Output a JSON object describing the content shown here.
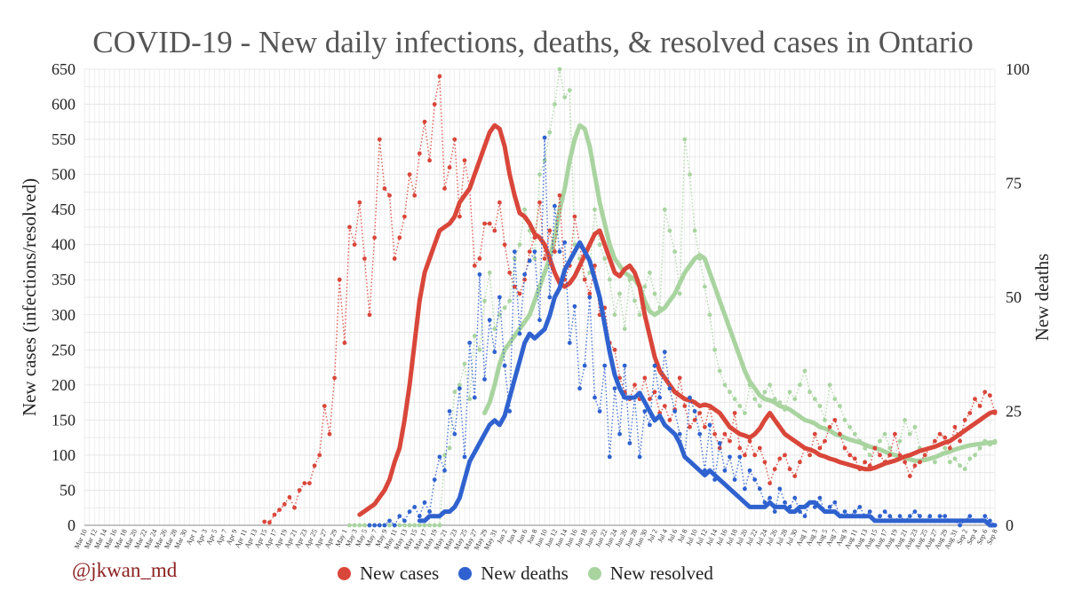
{
  "title": "COVID-19 - New daily infections, deaths, & resolved cases in Ontario",
  "credit": "@jkwan_md",
  "colors": {
    "cases": "#d9463a",
    "deaths": "#2f62cf",
    "resolved": "#a9d4a0",
    "grid": "#e3e3e3"
  },
  "chart_data": {
    "type": "line",
    "title": "COVID-19 - New daily infections, deaths, & resolved cases in Ontario",
    "ylabel_left": "New cases (infections/resolved)",
    "ylabel_right": "New deaths",
    "ylim_left": [
      0,
      650
    ],
    "ylim_right": [
      0,
      100
    ],
    "yticks_left": [
      0,
      50,
      100,
      150,
      200,
      250,
      300,
      350,
      400,
      450,
      500,
      550,
      600,
      650
    ],
    "yticks_right": [
      0,
      25,
      50,
      75,
      100
    ],
    "x_start": "2020-03-10",
    "x_end": "2020-09-08",
    "x_tick_labels": [
      "Mar 10",
      "Mar 12",
      "Mar 14",
      "Mar 16",
      "Mar 18",
      "Mar 20",
      "Mar 22",
      "Mar 24",
      "Mar 26",
      "Mar 28",
      "Mar 30",
      "Apr 1",
      "Apr 3",
      "Apr 5",
      "Apr 7",
      "Apr 9",
      "Apr 11",
      "Apr 13",
      "Apr 15",
      "Apr 17",
      "Apr 19",
      "Apr 21",
      "Apr 23",
      "Apr 25",
      "Apr 27",
      "Apr 29",
      "May 1",
      "May 3",
      "May 5",
      "May 7",
      "May 9",
      "May 11",
      "May 13",
      "May 15",
      "May 17",
      "May 19",
      "May 21",
      "May 23",
      "May 25",
      "May 27",
      "May 29",
      "May 31",
      "Jun 2",
      "Jun 4",
      "Jun 6",
      "Jun 8",
      "Jun 10",
      "Jun 12",
      "Jun 14",
      "Jun 16",
      "Jun 18",
      "Jun 20",
      "Jun 22",
      "Jun 24",
      "Jun 26",
      "Jun 28",
      "Jun 30",
      "Jul 2",
      "Jul 4",
      "Jul 6",
      "Jul 8",
      "Jul 10",
      "Jul 12",
      "Jul 14",
      "Jul 16",
      "Jul 18",
      "Jul 20",
      "Jul 22",
      "Jul 24",
      "Jul 26",
      "Jul 28",
      "Jul 30",
      "Aug 1",
      "Aug 3",
      "Aug 5",
      "Aug 7",
      "Aug 9",
      "Aug 11",
      "Aug 13",
      "Aug 15",
      "Aug 17",
      "Aug 19",
      "Aug 21",
      "Aug 23",
      "Aug 25",
      "Aug 27",
      "Aug 29",
      "Aug 31",
      "Sep 2",
      "Sep 4",
      "Sep 6",
      "Sep 8"
    ],
    "legend_position": "bottom",
    "grid": true,
    "series": [
      {
        "name": "New cases",
        "axis": "left",
        "style": "dotted daily + thick 7-day average",
        "daily": [
          5,
          4,
          15,
          22,
          30,
          40,
          25,
          50,
          60,
          60,
          85,
          100,
          170,
          130,
          210,
          350,
          260,
          425,
          400,
          460,
          380,
          300,
          410,
          550,
          480,
          470,
          380,
          410,
          440,
          500,
          470,
          530,
          575,
          520,
          600,
          640,
          480,
          510,
          550,
          440,
          520,
          480,
          370,
          380,
          430,
          430,
          420,
          460,
          400,
          360,
          340,
          330,
          350,
          390,
          410,
          460,
          380,
          420,
          390,
          470,
          350,
          370,
          440,
          400,
          350,
          330,
          370,
          300,
          310,
          260,
          250,
          210,
          190,
          180,
          200,
          180,
          210,
          180,
          190,
          160,
          170,
          150,
          165,
          210,
          170,
          140,
          150,
          160,
          140,
          170,
          130,
          110,
          130,
          120,
          160,
          110,
          100,
          120,
          100,
          110,
          90,
          60,
          80,
          95,
          100,
          80,
          70,
          90,
          110,
          100,
          130,
          110,
          120,
          140,
          150,
          130,
          110,
          100,
          95,
          80,
          90,
          85,
          110,
          100,
          90,
          100,
          130,
          100,
          90,
          70,
          85,
          90,
          100,
          110,
          120,
          130,
          125,
          110,
          140,
          120,
          150,
          160,
          180,
          170,
          190,
          185,
          160
        ],
        "rolling": [
          15,
          20,
          25,
          30,
          40,
          50,
          65,
          90,
          110,
          150,
          200,
          260,
          320,
          360,
          380,
          400,
          420,
          425,
          430,
          440,
          460,
          470,
          480,
          500,
          520,
          540,
          560,
          570,
          565,
          540,
          500,
          470,
          445,
          440,
          430,
          415,
          410,
          400,
          380,
          360,
          345,
          340,
          345,
          355,
          370,
          385,
          400,
          415,
          420,
          400,
          380,
          360,
          355,
          365,
          370,
          360,
          340,
          300,
          270,
          240,
          220,
          210,
          200,
          190,
          185,
          180,
          178,
          175,
          170,
          172,
          170,
          165,
          160,
          150,
          140,
          135,
          130,
          128,
          125,
          130,
          138,
          150,
          160,
          150,
          140,
          130,
          125,
          120,
          115,
          110,
          108,
          105,
          100,
          98,
          95,
          93,
          90,
          88,
          86,
          84,
          82,
          80,
          80,
          82,
          85,
          88,
          90,
          92,
          95,
          98,
          100,
          103,
          106,
          108,
          110,
          112,
          115,
          118,
          120,
          125,
          130,
          135,
          140,
          145,
          150,
          155,
          160,
          162
        ]
      },
      {
        "name": "New deaths",
        "axis": "right",
        "style": "dotted daily + thick 7-day average",
        "daily": [
          0,
          0,
          0,
          0,
          1,
          0,
          2,
          1,
          3,
          4,
          2,
          5,
          3,
          10,
          15,
          12,
          25,
          20,
          30,
          15,
          40,
          28,
          55,
          32,
          45,
          38,
          50,
          35,
          25,
          60,
          42,
          55,
          58,
          60,
          45,
          85,
          50,
          70,
          60,
          62,
          40,
          48,
          30,
          35,
          50,
          28,
          25,
          35,
          15,
          30,
          20,
          35,
          18,
          28,
          15,
          25,
          22,
          35,
          28,
          38,
          30,
          25,
          20,
          15,
          28,
          25,
          20,
          12,
          22,
          10,
          18,
          12,
          15,
          10,
          15,
          8,
          12,
          10,
          8,
          5,
          6,
          3,
          8,
          5,
          4,
          6,
          3,
          2,
          5,
          4,
          6,
          3,
          4,
          5,
          2,
          3,
          2,
          3,
          4,
          2,
          3,
          1,
          2,
          3,
          2,
          1,
          2,
          1,
          2,
          3,
          2,
          1,
          2,
          1,
          2,
          2,
          1,
          1,
          0,
          1,
          2,
          1,
          1,
          2,
          1,
          0
        ],
        "rolling": [
          1,
          1,
          2,
          2,
          2,
          3,
          3,
          4,
          6,
          10,
          14,
          16,
          18,
          20,
          22,
          23,
          22,
          24,
          28,
          32,
          36,
          40,
          42,
          41,
          42,
          43,
          46,
          50,
          52,
          56,
          58,
          60,
          62,
          60,
          58,
          54,
          50,
          44,
          38,
          33,
          30,
          28,
          28,
          28,
          29,
          27,
          25,
          23,
          24,
          22,
          21,
          20,
          18,
          15,
          14,
          13,
          12,
          11,
          12,
          11,
          10,
          9,
          8,
          7,
          6,
          5,
          4,
          4,
          4,
          4,
          5,
          4,
          4,
          4,
          3,
          3,
          4,
          4,
          5,
          5,
          4,
          3,
          3,
          3,
          2,
          2,
          2,
          2,
          2,
          2,
          2,
          1,
          1,
          1,
          1,
          1,
          1,
          1,
          1,
          1,
          1,
          1,
          1,
          1,
          1,
          1,
          1,
          1,
          1,
          1,
          1,
          1,
          1,
          1,
          0,
          0
        ]
      },
      {
        "name": "New resolved",
        "axis": "left",
        "style": "dotted daily + thick 7-day average",
        "daily": [
          0,
          0,
          0,
          0,
          0,
          0,
          0,
          0,
          0,
          0,
          0,
          0,
          0,
          0,
          0,
          0,
          0,
          0,
          0,
          100,
          110,
          190,
          200,
          230,
          180,
          270,
          250,
          320,
          360,
          280,
          300,
          310,
          320,
          380,
          400,
          450,
          420,
          380,
          500,
          520,
          560,
          600,
          650,
          610,
          620,
          400,
          380,
          350,
          360,
          450,
          400,
          380,
          350,
          300,
          330,
          280,
          350,
          320,
          300,
          340,
          360,
          330,
          310,
          450,
          420,
          390,
          330,
          550,
          500,
          420,
          380,
          340,
          300,
          250,
          220,
          200,
          190,
          180,
          170,
          160,
          200,
          180,
          170,
          190,
          200,
          180,
          175,
          165,
          190,
          180,
          200,
          220,
          190,
          180,
          170,
          150,
          200,
          180,
          170,
          150,
          140,
          130,
          120,
          110,
          100,
          110,
          120,
          130,
          110,
          100,
          120,
          150,
          130,
          140,
          110,
          100,
          95,
          90,
          100,
          110,
          90,
          95,
          85,
          80,
          95,
          100,
          110,
          120,
          115,
          120
        ],
        "rolling": [
          160,
          175,
          200,
          230,
          250,
          260,
          270,
          280,
          290,
          300,
          320,
          340,
          360,
          380,
          410,
          450,
          480,
          520,
          550,
          570,
          565,
          540,
          500,
          460,
          430,
          400,
          380,
          370,
          360,
          355,
          350,
          340,
          320,
          305,
          300,
          305,
          310,
          320,
          330,
          345,
          360,
          370,
          380,
          385,
          380,
          360,
          340,
          320,
          300,
          280,
          260,
          240,
          220,
          205,
          195,
          185,
          180,
          178,
          175,
          170,
          168,
          165,
          160,
          155,
          150,
          148,
          145,
          140,
          138,
          135,
          130,
          128,
          125,
          122,
          120,
          118,
          115,
          112,
          110,
          108,
          105,
          102,
          100,
          98,
          96,
          94,
          92,
          92,
          93,
          95,
          97,
          100,
          103,
          105,
          108,
          110,
          112,
          114,
          115,
          116,
          117,
          118,
          118
        ]
      }
    ]
  }
}
